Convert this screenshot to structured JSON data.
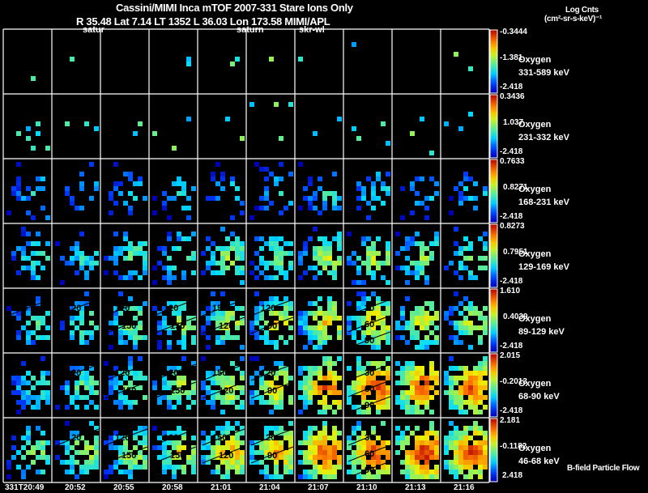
{
  "header": {
    "title": "Cassini/MIMI Inca mTOF  2007-331   Stare   Ions Only",
    "subtitle": "R        35.48 Lat 7.14 LT 1352 L          36.03 Lon          173.58  MIMI/APL",
    "units_line1": "Log Cnts",
    "units_line2": "(cm²-sr-s-keV)⁻¹"
  },
  "observer_labels": [
    "satur",
    "saturn",
    "skr-wl"
  ],
  "footer_note": "B-field Particle Flow",
  "chart_data": {
    "type": "heatmap",
    "title": "Cassini/MIMI Inca mTOF  2007-331   Stare   Ions Only",
    "species": "Oxygen",
    "times": [
      "331T20:49",
      "20:52",
      "20:55",
      "20:58",
      "21:01",
      "21:04",
      "21:07",
      "21:10",
      "21:13",
      "21:16"
    ],
    "colorscale": "rainbow (blue-cyan-green-yellow-red)",
    "rows": [
      {
        "species": "Oxygen",
        "energy": "331-589 keV",
        "cb_max": "-0.3444",
        "cb_mid": "-1.381",
        "cb_min": "-2.418",
        "intensity": [
          0.05,
          0.05,
          0.05,
          0.05,
          0.05,
          0.04,
          0.05,
          0.06,
          0.05,
          0.03
        ]
      },
      {
        "species": "Oxygen",
        "energy": "231-332 keV",
        "cb_max": "0.3436",
        "cb_mid": "1.037",
        "cb_min": "-2.418",
        "intensity": [
          0.15,
          0.1,
          0.15,
          0.15,
          0.15,
          0.15,
          0.15,
          0.2,
          0.2,
          0.15
        ]
      },
      {
        "species": "Oxygen",
        "energy": "168-231 keV",
        "cb_max": "0.7633",
        "cb_mid": "0.8271",
        "cb_min": "-2.418",
        "intensity": [
          0.3,
          0.25,
          0.3,
          0.3,
          0.3,
          0.3,
          0.35,
          0.35,
          0.3,
          0.3
        ]
      },
      {
        "species": "Oxygen",
        "energy": "129-169 keV",
        "cb_max": "0.8273",
        "cb_mid": "0.7951",
        "cb_min": "-2.418",
        "intensity": [
          0.4,
          0.35,
          0.45,
          0.45,
          0.5,
          0.5,
          0.55,
          0.55,
          0.5,
          0.45
        ]
      },
      {
        "species": "Oxygen",
        "energy": "89-129 keV",
        "cb_max": "1.610",
        "cb_mid": "0.4039",
        "cb_min": "-2.418",
        "intensity": [
          0.4,
          0.45,
          0.5,
          0.5,
          0.55,
          0.6,
          0.65,
          0.65,
          0.6,
          0.55
        ]
      },
      {
        "species": "Oxygen",
        "energy": "68-90 keV",
        "cb_max": "2.015",
        "cb_mid": "-0.2013",
        "cb_min": "-2.418",
        "intensity": [
          0.4,
          0.45,
          0.5,
          0.55,
          0.6,
          0.65,
          0.8,
          0.85,
          0.85,
          0.8
        ]
      },
      {
        "species": "Oxygen",
        "energy": "46-68 keV",
        "cb_max": "2.181",
        "cb_mid": "-0.1182",
        "cb_min": "2.418",
        "intensity": [
          0.5,
          0.55,
          0.55,
          0.6,
          0.7,
          0.7,
          0.85,
          0.85,
          0.9,
          0.85
        ]
      }
    ],
    "contour_labels": [
      {
        "row": 4,
        "col": 0,
        "labels": [
          "90"
        ]
      },
      {
        "row": 4,
        "col": 1,
        "labels": [
          "120"
        ]
      },
      {
        "row": 4,
        "col": 2,
        "labels": [
          "120",
          "150"
        ]
      },
      {
        "row": 4,
        "col": 3,
        "labels": [
          "120",
          "150"
        ]
      },
      {
        "row": 4,
        "col": 4,
        "labels": [
          "150",
          "120"
        ]
      },
      {
        "row": 4,
        "col": 5,
        "labels": [
          "120",
          "90"
        ]
      },
      {
        "row": 4,
        "col": 7,
        "labels": [
          "30",
          "60",
          "90"
        ]
      },
      {
        "row": 5,
        "col": 1,
        "labels": [
          "120"
        ]
      },
      {
        "row": 5,
        "col": 2,
        "labels": [
          "120",
          "150"
        ]
      },
      {
        "row": 5,
        "col": 3,
        "labels": [
          "120",
          "150"
        ]
      },
      {
        "row": 5,
        "col": 4,
        "labels": [
          "150",
          "120"
        ]
      },
      {
        "row": 5,
        "col": 5,
        "labels": [
          "120",
          "90"
        ]
      },
      {
        "row": 5,
        "col": 7,
        "labels": [
          "30",
          "60",
          "90"
        ]
      },
      {
        "row": 6,
        "col": 1,
        "labels": [
          "120"
        ]
      },
      {
        "row": 6,
        "col": 2,
        "labels": [
          "120",
          "150"
        ]
      },
      {
        "row": 6,
        "col": 3,
        "labels": [
          "120",
          "150"
        ]
      },
      {
        "row": 6,
        "col": 4,
        "labels": [
          "150",
          "120"
        ]
      },
      {
        "row": 6,
        "col": 5,
        "labels": [
          "120",
          "90"
        ]
      },
      {
        "row": 6,
        "col": 7,
        "labels": [
          "30",
          "60",
          "90"
        ]
      }
    ]
  }
}
